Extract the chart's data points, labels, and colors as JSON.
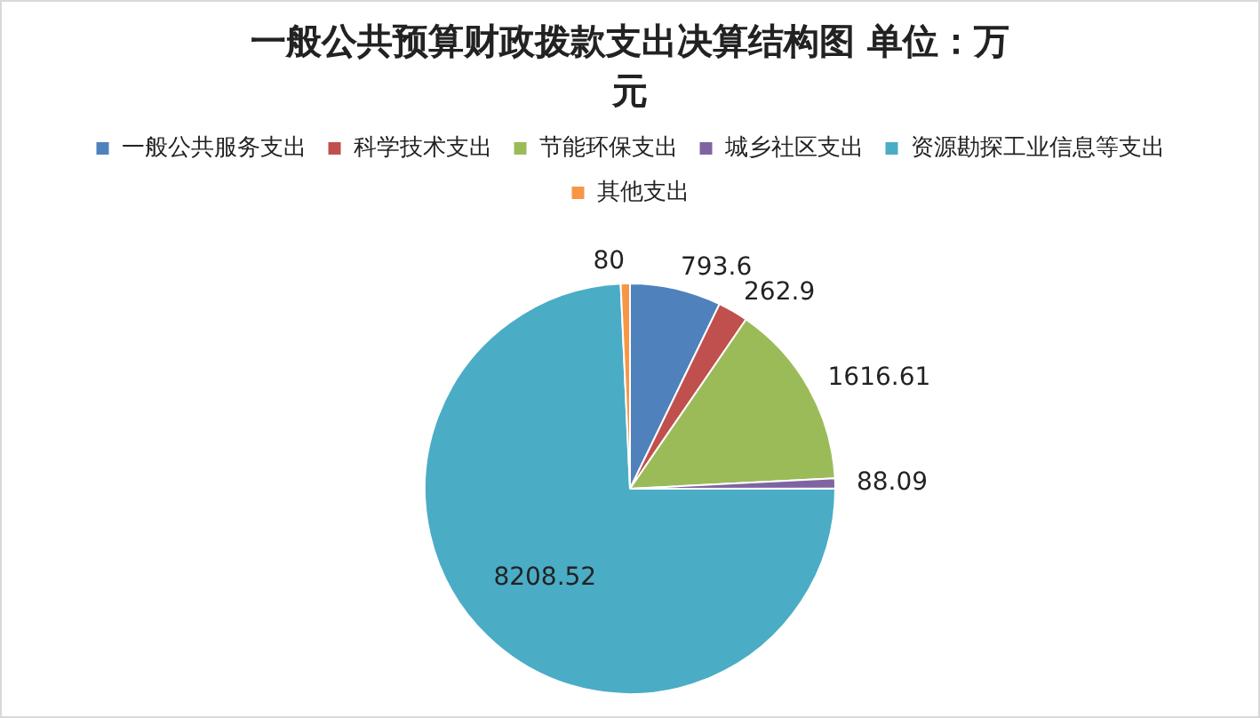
{
  "chart_data": {
    "type": "pie",
    "title": "一般公共预算财政拨款支出决算结构图 单位：万元",
    "categories": [
      "一般公共服务支出",
      "科学技术支出",
      "节能环保支出",
      "城乡社区支出",
      "资源勘探工业信息等支出",
      "其他支出"
    ],
    "values": [
      793.6,
      262.9,
      1616.61,
      88.09,
      8208.52,
      80
    ],
    "colors": [
      "#4f81bd",
      "#c0504d",
      "#9bbb59",
      "#8064a2",
      "#4bacc6",
      "#f79646"
    ],
    "data_labels": true,
    "legend": "top"
  }
}
